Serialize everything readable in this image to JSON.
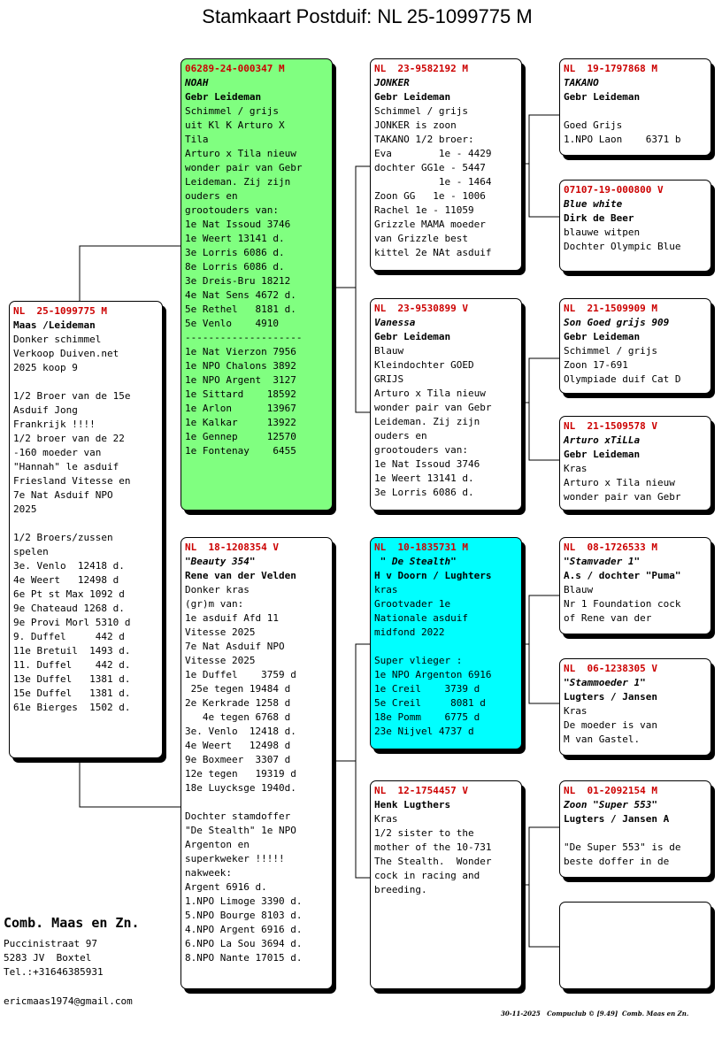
{
  "title": "Stamkaart Postduif: NL  25-1099775 M",
  "pigeons": {
    "subject": {
      "id": "NL  25-1099775 M",
      "name": "",
      "owner": "Maas /Leideman",
      "lines": [
        "Donker schimmel",
        "Verkoop Duiven.net",
        "2025 koop 9",
        "",
        "1/2 Broer van de 15e",
        "Asduif Jong",
        "Frankrijk !!!!",
        "1/2 broer van de 22",
        "-160 moeder van",
        "\"Hannah\" le asduif",
        "Friesland Vitesse en",
        "7e Nat Asduif NPO",
        "2025",
        "",
        "1/2 Broers/zussen",
        "spelen",
        "3e. Venlo  12418 d.",
        "4e Weert   12498 d",
        "6e Pt st Max 1092 d",
        "9e Chateaud 1268 d.",
        "9e Provi Morl 5310 d",
        "9. Duffel     442 d",
        "11e Bretuil  1493 d.",
        "11. Duffel    442 d.",
        "13e Duffel   1381 d.",
        "15e Duffel   1381 d.",
        "61e Bierges  1502 d."
      ]
    },
    "father": {
      "id": "06289-24-000347 M",
      "name": "NOAH",
      "owner": "Gebr Leideman",
      "lines": [
        "Schimmel / grijs",
        "uit Kl K Arturo X",
        "Tila",
        "Arturo x Tila nieuw",
        "wonder pair van Gebr",
        "Leideman. Zij zijn",
        "ouders en",
        "grootouders van:",
        "1e Nat Issoud 3746",
        "1e Weert 13141 d.",
        "3e Lorris 6086 d.",
        "8e Lorris 6086 d.",
        "3e Dreis-Bru 18212",
        "4e Nat Sens 4672 d.",
        "5e Rethel   8181 d.",
        "5e Venlo    4910",
        "--------------------",
        "1e Nat Vierzon 7956",
        "1e NPO Chalons 3892",
        "1e NPO Argent  3127",
        "1e Sittard    18592",
        "1e Arlon      13967",
        "1e Kalkar     13922",
        "1e Gennep     12570",
        "1e Fontenay    6455"
      ]
    },
    "mother": {
      "id": "NL  18-1208354 V",
      "name": "\"Beauty 354\"",
      "owner": "Rene van der Velden",
      "lines": [
        "Donker kras",
        "(gr)m van:",
        "1e asduif Afd 11",
        "Vitesse 2025",
        "7e Nat Asduif NPO",
        "Vitesse 2025",
        "1e Duffel    3759 d",
        " 25e tegen 19484 d",
        "2e Kerkrade 1258 d",
        "   4e tegen 6768 d",
        "3e. Venlo  12418 d.",
        "4e Weert   12498 d",
        "9e Boxmeer  3307 d",
        "12e tegen   19319 d",
        "18e Luycksge 1940d.",
        "",
        "Dochter stamdoffer",
        "\"De Stealth\" 1e NPO",
        "Argenton en",
        "superkweker !!!!!",
        "nakweek:",
        "Argent 6916 d.",
        "1.NPO Limoge 3390 d.",
        "5.NPO Bourge 8103 d.",
        "4.NPO Argent 6916 d.",
        "6.NPO La Sou 3694 d.",
        "8.NPO Nante 17015 d."
      ]
    },
    "ff": {
      "id": "NL  23-9582192 M",
      "name": "JONKER",
      "owner": "Gebr Leideman",
      "lines": [
        "Schimmel / grijs",
        "JONKER is zoon",
        "TAKANO 1/2 broer:",
        "Eva        1e - 4429",
        "dochter GG1e - 5447",
        "           1e - 1464",
        "Zoon GG   1e - 1006",
        "Rachel 1e - 11059",
        "Grizzle MAMA moeder",
        "van Grizzle best",
        "kittel 2e NAt asduif"
      ]
    },
    "fm": {
      "id": "NL  23-9530899 V",
      "name": "Vanessa",
      "owner": "Gebr Leideman",
      "lines": [
        "Blauw",
        "Kleindochter GOED",
        "GRIJS",
        "Arturo x Tila nieuw",
        "wonder pair van Gebr",
        "Leideman. Zij zijn",
        "ouders en",
        "grootouders van:",
        "1e Nat Issoud 3746",
        "1e Weert 13141 d.",
        "3e Lorris 6086 d."
      ]
    },
    "mf": {
      "id": "NL  10-1835731 M",
      "name": " \" De Stealth\"",
      "owner": "H v Doorn / Lughters",
      "lines": [
        "kras",
        "Grootvader 1e",
        "Nationale asduif",
        "midfond 2022",
        "",
        "Super vlieger :",
        "1e NPO Argenton 6916",
        "1e Creil    3739 d",
        "5e Creil     8081 d",
        "18e Pomm    6775 d",
        "23e Nijvel 4737 d"
      ]
    },
    "mm": {
      "id": "NL  12-1754457 V",
      "name": "",
      "owner": "Henk Lugthers",
      "lines": [
        "Kras",
        "1/2 sister to the",
        "mother of the 10-731",
        "The Stealth.  Wonder",
        "cock in racing and",
        "breeding."
      ]
    },
    "fff": {
      "id": "NL  19-1797868 M",
      "name": "TAKANO",
      "owner": "Gebr Leideman",
      "lines": [
        "",
        "Goed Grijs",
        "1.NPO Laon    6371 b"
      ]
    },
    "ffm": {
      "id": "07107-19-000800 V",
      "name": "Blue white",
      "owner": "Dirk de Beer",
      "lines": [
        "blauwe witpen",
        "Dochter Olympic Blue"
      ]
    },
    "fmf": {
      "id": "NL  21-1509909 M",
      "name": "Son Goed grijs 909",
      "owner": "Gebr Leideman",
      "lines": [
        "Schimmel / grijs",
        "Zoon 17-691",
        "Olympiade duif Cat D"
      ]
    },
    "fmm": {
      "id": "NL  21-1509578 V",
      "name": "Arturo xTiLLa",
      "owner": "Gebr Leideman",
      "lines": [
        "Kras",
        "Arturo x Tila nieuw",
        "wonder pair van Gebr"
      ]
    },
    "mff": {
      "id": "NL  08-1726533 M",
      "name": "\"Stamvader 1\"",
      "owner": "A.s / dochter \"Puma\"",
      "lines": [
        "Blauw",
        "Nr 1 Foundation cock",
        "of Rene van der"
      ]
    },
    "mfm": {
      "id": "NL  06-1238305 V",
      "name": "\"Stammoeder 1\"",
      "owner": "Lugters / Jansen",
      "lines": [
        "Kras",
        "De moeder is van",
        "M van Gastel."
      ]
    },
    "mmf": {
      "id": "NL  01-2092154 M",
      "name": "Zoon \"Super 553\"",
      "owner": "Lugters / Jansen A",
      "lines": [
        "",
        "\"De Super 553\" is de",
        "beste doffer in de"
      ]
    },
    "mmm": {
      "id": "",
      "name": "",
      "owner": "",
      "lines": []
    }
  },
  "breeder": {
    "name": "Comb. Maas en Zn.",
    "street": "Puccinistraat 97",
    "city": "5283 JV  Boxtel",
    "phone": "Tel.:+31646385931",
    "email": "ericmaas1974@gmail.com"
  },
  "footer": "30-11-2025   Compuclub © [9.49]  Comb. Maas en Zn.",
  "colors": {
    "father_bg": "#80ff80",
    "mf_bg": "#00ffff",
    "id_text": "#cc0000"
  }
}
